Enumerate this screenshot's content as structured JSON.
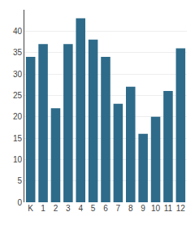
{
  "chart_data": {
    "type": "bar",
    "categories": [
      "K",
      "1",
      "2",
      "3",
      "4",
      "5",
      "6",
      "7",
      "8",
      "9",
      "10",
      "11",
      "12"
    ],
    "values": [
      34,
      37,
      22,
      37,
      43,
      38,
      34,
      23,
      27,
      16,
      20,
      26,
      36
    ],
    "color": "#2e6b8a",
    "ylim": [
      0,
      45
    ],
    "yticks": [
      0,
      5,
      10,
      15,
      20,
      25,
      30,
      35,
      40
    ],
    "grid": true
  }
}
